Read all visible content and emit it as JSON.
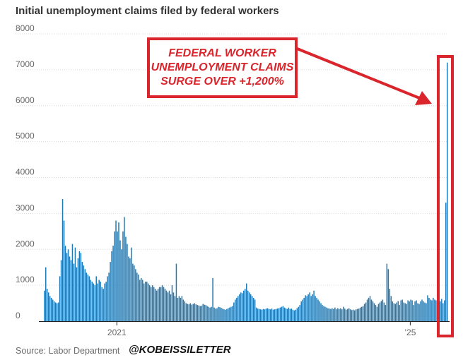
{
  "header": {
    "title": "Initial unemployment claims filed by federal workers"
  },
  "footer": {
    "source": "Source: Labor Department",
    "handle": "@KOBEISSILETTER"
  },
  "annotation": {
    "lines": [
      "FEDERAL WORKER",
      "UNEMPLOYMENT CLAIMS",
      "SURGE OVER +1,200%"
    ],
    "color": "#d9252b"
  },
  "chart_data": {
    "type": "bar",
    "title": "Initial unemployment claims filed by federal workers",
    "xlabel": "",
    "ylabel": "",
    "ylim": [
      0,
      8000
    ],
    "yticks": [
      0,
      1000,
      2000,
      3000,
      4000,
      5000,
      6000,
      7000,
      8000
    ],
    "xticks": [
      {
        "label": "2021",
        "index": 52
      },
      {
        "label": "’25",
        "index": 261
      }
    ],
    "grid": true,
    "bar_color": "#1f7ab5",
    "values": [
      850,
      1500,
      900,
      800,
      700,
      650,
      600,
      550,
      520,
      500,
      520,
      1250,
      1700,
      3400,
      2800,
      2100,
      1900,
      2000,
      1800,
      1700,
      2150,
      1600,
      2050,
      1500,
      1750,
      1950,
      1900,
      1650,
      1550,
      1450,
      1350,
      1300,
      1250,
      1150,
      1100,
      1050,
      1000,
      1250,
      1050,
      1150,
      1100,
      950,
      900,
      1050,
      1100,
      1250,
      1350,
      1650,
      1950,
      2100,
      2500,
      2800,
      2500,
      2750,
      2250,
      2000,
      2500,
      2900,
      2350,
      2150,
      1800,
      1750,
      2050,
      1600,
      1550,
      1450,
      1350,
      1300,
      1150,
      1200,
      1150,
      1050,
      1100,
      1100,
      1050,
      1000,
      950,
      1000,
      950,
      900,
      850,
      900,
      950,
      950,
      1000,
      950,
      900,
      850,
      800,
      850,
      750,
      1000,
      800,
      700,
      1600,
      650,
      700,
      650,
      700,
      600,
      550,
      500,
      480,
      470,
      500,
      460,
      480,
      500,
      470,
      450,
      440,
      420,
      430,
      480,
      460,
      450,
      420,
      400,
      380,
      400,
      1200,
      380,
      350,
      360,
      400,
      390,
      370,
      350,
      330,
      320,
      340,
      360,
      380,
      400,
      420,
      520,
      600,
      650,
      700,
      750,
      800,
      780,
      850,
      900,
      1050,
      850,
      800,
      750,
      700,
      650,
      600,
      380,
      350,
      340,
      330,
      320,
      340,
      330,
      350,
      360,
      340,
      330,
      350,
      320,
      330,
      340,
      350,
      360,
      380,
      400,
      420,
      380,
      360,
      340,
      380,
      340,
      350,
      320,
      300,
      320,
      360,
      400,
      450,
      550,
      600,
      650,
      720,
      700,
      750,
      800,
      700,
      750,
      850,
      700,
      650,
      600,
      550,
      500,
      450,
      420,
      400,
      380,
      360,
      350,
      340,
      360,
      340,
      380,
      330,
      360,
      340,
      360,
      330,
      400,
      350,
      320,
      340,
      360,
      330,
      310,
      320,
      300,
      330,
      340,
      350,
      380,
      400,
      420,
      480,
      520,
      600,
      650,
      700,
      600,
      550,
      500,
      450,
      400,
      480,
      520,
      560,
      600,
      520,
      450,
      1600,
      1450,
      900,
      700,
      550,
      500,
      480,
      520,
      560,
      450,
      580,
      600,
      520,
      500,
      480,
      580,
      550,
      600,
      580,
      450,
      550,
      580,
      500,
      480,
      550,
      600,
      550,
      520,
      500,
      720,
      650,
      600,
      580,
      650,
      600,
      580,
      560,
      600,
      550,
      620,
      500,
      580,
      3300,
      7200
    ]
  }
}
